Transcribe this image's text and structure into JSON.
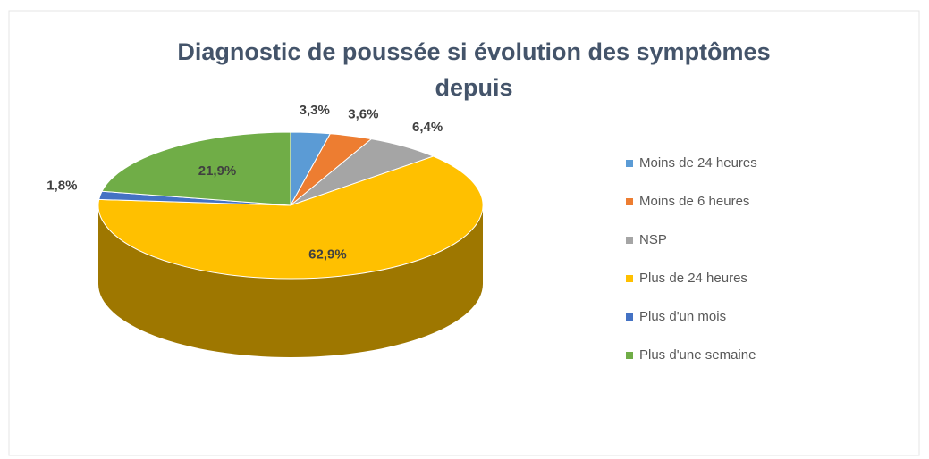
{
  "chart_data": {
    "type": "pie",
    "title": "Diagnostic de poussée si évolution des symptômes depuis",
    "categories": [
      "Moins de 24 heures",
      "Moins de 6 heures",
      "NSP",
      "Plus de 24 heures",
      "Plus d'un mois",
      "Plus d'une semaine"
    ],
    "values": [
      3.3,
      3.6,
      6.4,
      62.9,
      1.8,
      21.9
    ],
    "value_labels": [
      "3,3%",
      "3,6%",
      "6,4%",
      "62,9%",
      "1,8%",
      "21,9%"
    ],
    "colors": [
      "#5b9bd5",
      "#ed7d31",
      "#a5a5a5",
      "#ffc000",
      "#4472c4",
      "#70ad47"
    ],
    "legend": "right"
  }
}
